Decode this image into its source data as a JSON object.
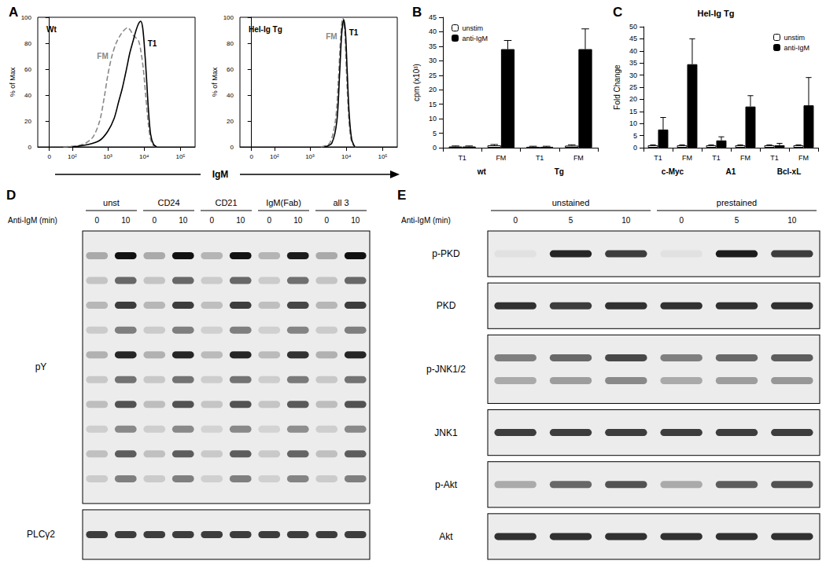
{
  "chart_data": [
    {
      "panel_label": "A",
      "type": "line",
      "log": "x",
      "grid": false,
      "xlabel": "IgM",
      "ylabel": "% of Max",
      "xlim": [
        -40,
        250000
      ],
      "xticks": [
        0,
        {
          "value": 100,
          "label": "10²"
        },
        {
          "value": 1000,
          "label": "10³"
        },
        {
          "value": 10000,
          "label": "10⁴"
        },
        {
          "value": 100000,
          "label": "10⁵"
        }
      ],
      "ylim": [
        0,
        100
      ],
      "yticks": [
        0,
        20,
        40,
        60,
        80,
        100
      ],
      "subplots": [
        {
          "title": "Wt",
          "series": [
            {
              "name": "FM",
              "color": "#888888",
              "line_style": "dashed",
              "x": [
                50,
                150,
                250,
                400,
                600,
                800,
                1000,
                1300,
                1700,
                2200,
                2800,
                3500,
                4200,
                5000,
                6000,
                7000,
                8000,
                9500,
                11000,
                13000,
                15000,
                18000,
                22000
              ],
              "values": [
                0,
                1,
                3,
                8,
                20,
                38,
                55,
                70,
                80,
                86,
                90,
                92,
                90,
                86,
                84,
                82,
                75,
                60,
                40,
                18,
                6,
                1,
                0
              ]
            },
            {
              "name": "T1",
              "color": "#000000",
              "line_style": "solid",
              "x": [
                100,
                300,
                600,
                1000,
                1500,
                2000,
                2500,
                3000,
                3500,
                4000,
                5000,
                6000,
                7000,
                8000,
                9000,
                10000,
                11500,
                13000,
                15000,
                18000,
                22000
              ],
              "values": [
                0,
                2,
                5,
                12,
                22,
                35,
                45,
                55,
                64,
                72,
                82,
                90,
                95,
                97,
                93,
                80,
                55,
                30,
                10,
                2,
                0
              ]
            }
          ]
        },
        {
          "title": "Hel-Ig Tg",
          "series": [
            {
              "name": "FM",
              "color": "#888888",
              "line_style": "dashed",
              "x": [
                2000,
                3500,
                5000,
                6000,
                7000,
                8000,
                9000,
                10000,
                11500,
                13000,
                15000,
                18000
              ],
              "values": [
                0,
                3,
                20,
                50,
                85,
                100,
                90,
                60,
                25,
                8,
                2,
                0
              ]
            },
            {
              "name": "T1",
              "color": "#000000",
              "line_style": "solid",
              "x": [
                2500,
                4000,
                5500,
                6500,
                7500,
                8500,
                9500,
                10500,
                12000,
                14000,
                17000
              ],
              "values": [
                0,
                3,
                20,
                55,
                88,
                98,
                88,
                60,
                25,
                6,
                0
              ]
            }
          ]
        }
      ]
    },
    {
      "panel_label": "B",
      "type": "bar",
      "grid": false,
      "legend": "top-left",
      "categories": [
        "T1",
        "FM",
        "T1",
        "FM"
      ],
      "groups": [
        "wt",
        "Tg"
      ],
      "ylabel": "cpm (x10³)",
      "ylim": [
        0,
        45
      ],
      "yticks": [
        0,
        5,
        10,
        15,
        20,
        25,
        30,
        35,
        40,
        45
      ],
      "series": [
        {
          "name": "unstim",
          "color": "#ffffff",
          "values": [
            0.4,
            0.8,
            0.3,
            0.7
          ],
          "errors": [
            0.2,
            0.3,
            0.2,
            0.3
          ]
        },
        {
          "name": "anti-IgM",
          "color": "#000000",
          "values": [
            0.4,
            34,
            0.3,
            34
          ],
          "errors": [
            0.2,
            3,
            0.2,
            7
          ]
        }
      ]
    },
    {
      "panel_label": "C",
      "type": "bar",
      "title": "Hel-Ig Tg",
      "grid": false,
      "legend": "top-right",
      "categories": [
        "T1",
        "FM",
        "T1",
        "FM",
        "T1",
        "FM"
      ],
      "groups": [
        "c-Myc",
        "A1",
        "Bcl-xL"
      ],
      "ylabel": "Fold Change",
      "ylim": [
        0,
        50
      ],
      "yticks": [
        0,
        5,
        10,
        15,
        20,
        25,
        30,
        35,
        40,
        45,
        50
      ],
      "series": [
        {
          "name": "unstim",
          "color": "#ffffff",
          "values": [
            1,
            1,
            1,
            1,
            1,
            1
          ],
          "errors": [
            0.2,
            0.2,
            0.2,
            0.2,
            0.2,
            0.2
          ]
        },
        {
          "name": "anti-IgM",
          "color": "#000000",
          "values": [
            7.5,
            34.5,
            3,
            17,
            1,
            17.5
          ],
          "errors": [
            5,
            10.5,
            1.5,
            4.5,
            0.8,
            11.5
          ]
        }
      ]
    }
  ],
  "blots": [
    {
      "panel_label": "D",
      "time_label": "Anti-IgM (min)",
      "groups": [
        {
          "label": "unst",
          "times": [
            0,
            10
          ]
        },
        {
          "label": "CD24",
          "times": [
            0,
            10
          ]
        },
        {
          "label": "CD21",
          "times": [
            0,
            10
          ]
        },
        {
          "label": "IgM(Fab)",
          "times": [
            0,
            10
          ]
        },
        {
          "label": "all 3",
          "times": [
            0,
            10
          ]
        }
      ],
      "rows": [
        {
          "label": "pY",
          "bands": 10,
          "intensity": [
            0.3,
            1,
            0.3,
            1,
            0.25,
            1,
            0.25,
            0.95,
            0.3,
            1
          ]
        },
        {
          "label": "PLCγ2",
          "bands": 1,
          "intensity": [
            0.8,
            0.8,
            0.8,
            0.8,
            0.8,
            0.8,
            0.8,
            0.8,
            0.8,
            0.8
          ]
        }
      ]
    },
    {
      "panel_label": "E",
      "time_label": "Anti-IgM (min)",
      "groups": [
        {
          "label": "unstained",
          "times": [
            0,
            5,
            10
          ]
        },
        {
          "label": "prestained",
          "times": [
            0,
            5,
            10
          ]
        }
      ],
      "rows": [
        {
          "label": "p-PKD",
          "bands": 1,
          "intensity": [
            0.05,
            0.9,
            0.8,
            0.05,
            0.95,
            0.8
          ]
        },
        {
          "label": "PKD",
          "bands": 1,
          "intensity": [
            0.85,
            0.8,
            0.85,
            0.85,
            0.85,
            0.85
          ]
        },
        {
          "label": "p-JNK1/2",
          "bands": 2,
          "intensity": [
            0.5,
            0.6,
            0.75,
            0.5,
            0.6,
            0.65
          ]
        },
        {
          "label": "JNK1",
          "bands": 1,
          "intensity": [
            0.8,
            0.8,
            0.8,
            0.8,
            0.8,
            0.8
          ]
        },
        {
          "label": "p-Akt",
          "bands": 1,
          "intensity": [
            0.3,
            0.6,
            0.7,
            0.3,
            0.65,
            0.7
          ]
        },
        {
          "label": "Akt",
          "bands": 1,
          "intensity": [
            0.85,
            0.85,
            0.85,
            0.85,
            0.85,
            0.85
          ]
        }
      ]
    }
  ]
}
